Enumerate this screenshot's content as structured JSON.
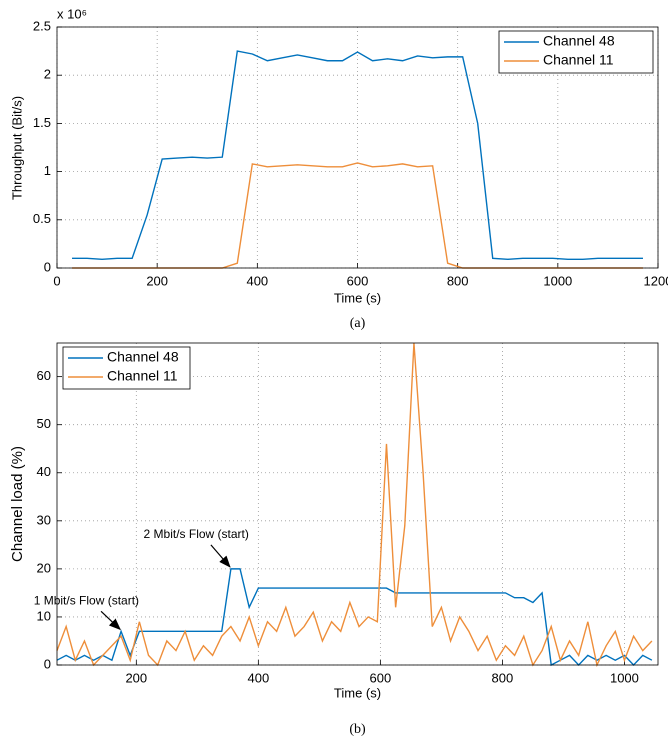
{
  "chart_data": [
    {
      "type": "line",
      "caption": "(a)",
      "x_label": "Time (s)",
      "y_label": "Throughput (Bit/s)",
      "y_exponent_label": "x 10⁶",
      "x": [
        30,
        60,
        90,
        120,
        150,
        180,
        210,
        240,
        270,
        300,
        330,
        360,
        390,
        420,
        450,
        480,
        510,
        540,
        570,
        600,
        630,
        660,
        690,
        720,
        750,
        780,
        810,
        840,
        870,
        900,
        930,
        960,
        990,
        1020,
        1050,
        1080,
        1110,
        1140,
        1170
      ],
      "series": [
        {
          "name": "Channel 48",
          "color": "#0072bd",
          "values": [
            0.1,
            0.1,
            0.09,
            0.1,
            0.1,
            0.55,
            1.13,
            1.14,
            1.15,
            1.14,
            1.15,
            2.25,
            2.22,
            2.15,
            2.18,
            2.21,
            2.18,
            2.15,
            2.15,
            2.24,
            2.15,
            2.17,
            2.15,
            2.2,
            2.18,
            2.19,
            2.19,
            1.5,
            0.1,
            0.09,
            0.1,
            0.1,
            0.1,
            0.09,
            0.09,
            0.1,
            0.1,
            0.1,
            0.1
          ]
        },
        {
          "name": "Channel 11",
          "color": "#ee8e3a",
          "values": [
            0,
            0,
            0,
            0,
            0,
            0,
            0,
            0,
            0,
            0,
            0,
            0.05,
            1.08,
            1.05,
            1.06,
            1.07,
            1.06,
            1.05,
            1.05,
            1.09,
            1.05,
            1.06,
            1.08,
            1.05,
            1.06,
            0.05,
            0,
            0,
            0,
            0,
            0,
            0,
            0,
            0,
            0,
            0,
            0,
            0,
            0
          ]
        }
      ],
      "xlim": [
        0,
        1200
      ],
      "xticks": [
        0,
        200,
        400,
        600,
        800,
        1000,
        1200
      ],
      "ylim": [
        0,
        2.5
      ],
      "yticks": [
        0,
        0.5,
        1,
        1.5,
        2,
        2.5
      ],
      "grid": true,
      "legend": "top-right"
    },
    {
      "type": "line",
      "caption": "(b)",
      "x_label": "Time (s)",
      "y_label": "Channel load (%)",
      "x": [
        70,
        85,
        100,
        115,
        130,
        145,
        160,
        175,
        190,
        205,
        220,
        235,
        250,
        265,
        280,
        295,
        310,
        325,
        340,
        355,
        370,
        385,
        400,
        415,
        430,
        445,
        460,
        475,
        490,
        505,
        520,
        535,
        550,
        565,
        580,
        595,
        610,
        625,
        640,
        655,
        670,
        685,
        700,
        715,
        730,
        745,
        760,
        775,
        790,
        805,
        820,
        835,
        850,
        865,
        880,
        895,
        910,
        925,
        940,
        955,
        970,
        985,
        1000,
        1015,
        1030,
        1045
      ],
      "series": [
        {
          "name": "Channel 48",
          "color": "#0072bd",
          "values": [
            1,
            2,
            1,
            2,
            1,
            2,
            1,
            7,
            2,
            7,
            7,
            7,
            7,
            7,
            7,
            7,
            7,
            7,
            7,
            20,
            20,
            12,
            16,
            16,
            16,
            16,
            16,
            16,
            16,
            16,
            16,
            16,
            16,
            16,
            16,
            16,
            16,
            15,
            15,
            15,
            15,
            15,
            15,
            15,
            15,
            15,
            15,
            15,
            15,
            15,
            14,
            14,
            13,
            15,
            0,
            1,
            2,
            0,
            2,
            1,
            2,
            1,
            2,
            0,
            2,
            1
          ]
        },
        {
          "name": "Channel 11",
          "color": "#ee8e3a",
          "values": [
            3,
            8,
            1,
            5,
            0,
            2,
            4,
            6,
            1,
            9,
            2,
            0,
            5,
            3,
            7,
            1,
            4,
            2,
            6,
            8,
            5,
            10,
            4,
            9,
            7,
            12,
            6,
            8,
            11,
            5,
            9,
            7,
            13,
            8,
            10,
            9,
            46,
            12,
            29,
            67,
            40,
            8,
            12,
            5,
            10,
            7,
            3,
            6,
            1,
            4,
            2,
            6,
            0,
            3,
            8,
            1,
            5,
            2,
            9,
            0,
            4,
            7,
            1,
            6,
            3,
            5
          ]
        }
      ],
      "annotations": [
        {
          "text": "1 Mbit/s Flow (start)"
        },
        {
          "text": "2 Mbit/s Flow (start)"
        }
      ],
      "xlim": [
        70,
        1055
      ],
      "xticks": [
        200,
        400,
        600,
        800,
        1000
      ],
      "ylim": [
        0,
        67
      ],
      "yticks": [
        0,
        10,
        20,
        30,
        40,
        50,
        60
      ],
      "grid": true,
      "legend": "top-left"
    }
  ]
}
